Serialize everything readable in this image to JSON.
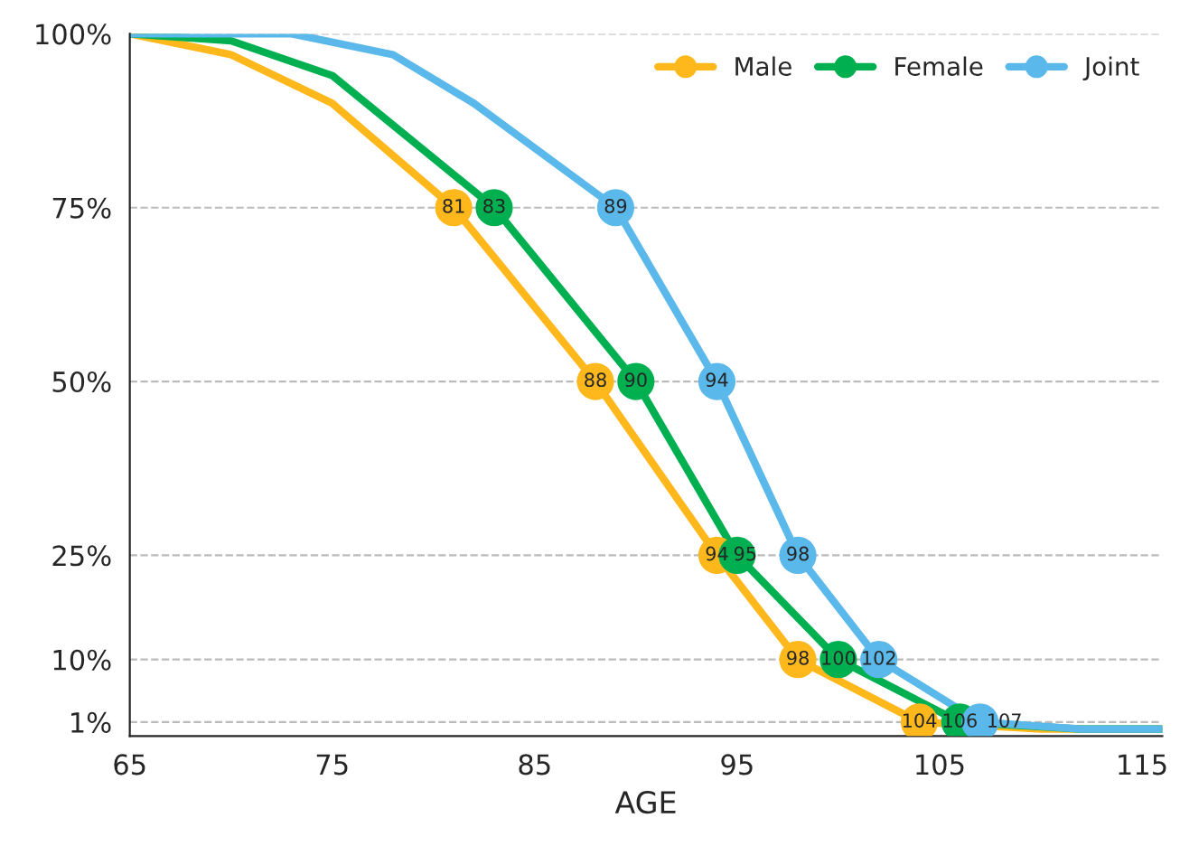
{
  "chart_data": {
    "type": "line",
    "xlabel": "AGE",
    "xlim": [
      65,
      116
    ],
    "xticks": [
      65,
      75,
      85,
      95,
      105,
      115
    ],
    "ylim": [
      -1,
      100
    ],
    "yticks": [
      {
        "value": 1,
        "label": "1%"
      },
      {
        "value": 10,
        "label": "10%"
      },
      {
        "value": 25,
        "label": "25%"
      },
      {
        "value": 50,
        "label": "50%"
      },
      {
        "value": 75,
        "label": "75%"
      },
      {
        "value": 100,
        "label": "100%"
      }
    ],
    "grid": "y",
    "legend": "top right",
    "series": [
      {
        "name": "Male",
        "color": "#ffb81c",
        "x": [
          65,
          70,
          75,
          81,
          88,
          94,
          98,
          104,
          110,
          116
        ],
        "values": [
          100,
          97,
          90,
          75,
          50,
          25,
          10,
          1,
          0,
          0
        ]
      },
      {
        "name": "Female",
        "color": "#00b050",
        "x": [
          65,
          70,
          75,
          83,
          90,
          95,
          100,
          106,
          112,
          116
        ],
        "values": [
          100,
          99,
          94,
          75,
          50,
          25,
          10,
          1,
          0,
          0
        ]
      },
      {
        "name": "Joint",
        "color": "#5bb8ea",
        "x": [
          65,
          73,
          78,
          82,
          89,
          94,
          98,
          102,
          107,
          112,
          116
        ],
        "values": [
          100,
          100,
          97,
          90,
          75,
          50,
          25,
          10,
          1,
          0,
          0
        ]
      },
      {
        "type": "scatter",
        "marker": "circle",
        "color": "#ffb81c",
        "x": [
          81,
          88,
          94,
          98,
          104
        ],
        "values": [
          75,
          50,
          25,
          10,
          1
        ]
      },
      {
        "type": "scatter",
        "marker": "circle",
        "color": "#00b050",
        "x": [
          83,
          90,
          95,
          100,
          106
        ],
        "values": [
          75,
          50,
          25,
          10,
          1
        ]
      },
      {
        "type": "scatter",
        "marker": "circle",
        "color": "#5bb8ea",
        "x": [
          89,
          94,
          98,
          102,
          107
        ],
        "values": [
          75,
          50,
          25,
          10,
          1
        ]
      }
    ],
    "annotations": [
      {
        "text": "81",
        "x": 81,
        "y": 75
      },
      {
        "text": "88",
        "x": 88,
        "y": 50
      },
      {
        "text": "94",
        "x": 94,
        "y": 25
      },
      {
        "text": "98",
        "x": 98,
        "y": 10
      },
      {
        "text": "104",
        "x": 104,
        "y": 1
      },
      {
        "text": "83",
        "x": 83,
        "y": 75
      },
      {
        "text": "90",
        "x": 90,
        "y": 50
      },
      {
        "text": "95",
        "x": 95,
        "y": 25
      },
      {
        "text": "100",
        "x": 100,
        "y": 10
      },
      {
        "text": "106",
        "x": 106,
        "y": 1
      },
      {
        "text": "89",
        "x": 89,
        "y": 75
      },
      {
        "text": "94",
        "x": 94,
        "y": 50
      },
      {
        "text": "98",
        "x": 98,
        "y": 25
      },
      {
        "text": "102",
        "x": 102,
        "y": 10
      },
      {
        "text": "107",
        "x": 107,
        "y": 1
      }
    ]
  }
}
